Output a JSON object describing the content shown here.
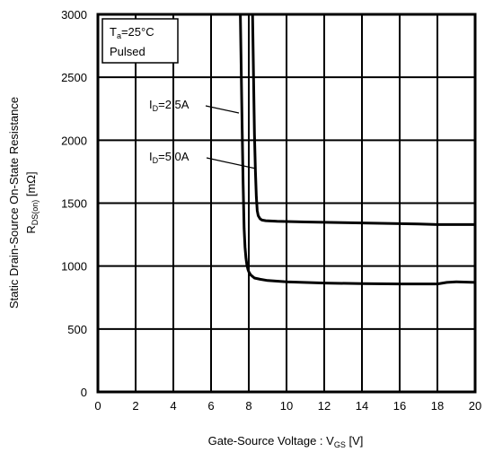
{
  "chart_data": {
    "type": "line",
    "title": "",
    "xlabel": {
      "main": "Gate-Source Voltage : V",
      "sub": "GS",
      "unit": " [V]"
    },
    "ylabel": {
      "line1": "Static Drain-Source On-State Resistance",
      "main": "R",
      "sub": "DS(on)",
      "unit": " [mΩ]"
    },
    "xlim": [
      0,
      20
    ],
    "ylim": [
      0,
      3000
    ],
    "xticks": [
      "0",
      "2",
      "4",
      "6",
      "8",
      "10",
      "12",
      "14",
      "16",
      "18",
      "20"
    ],
    "yticks": [
      "0",
      "500",
      "1000",
      "1500",
      "2000",
      "2500",
      "3000"
    ],
    "grid": true,
    "annotation": {
      "t_main": "T",
      "t_sub": "a",
      "t_rest": "=25°C",
      "line2": "Pulsed"
    },
    "series": [
      {
        "name": {
          "main": "I",
          "sub": "D",
          "rest": "=2.5A"
        },
        "x": [
          7.55,
          7.6,
          7.65,
          7.7,
          7.75,
          7.8,
          7.85,
          7.9,
          7.95,
          8.0,
          8.1,
          8.3,
          8.6,
          9,
          10,
          12,
          14,
          16,
          18,
          18.5,
          19,
          20
        ],
        "y": [
          3000,
          2550,
          2100,
          1650,
          1300,
          1150,
          1060,
          1010,
          975,
          955,
          930,
          905,
          895,
          885,
          875,
          865,
          860,
          858,
          858,
          870,
          875,
          870
        ]
      },
      {
        "name": {
          "main": "I",
          "sub": "D",
          "rest": "=5.0A"
        },
        "x": [
          8.2,
          8.25,
          8.3,
          8.35,
          8.4,
          8.45,
          8.5,
          8.6,
          8.7,
          8.9,
          9.5,
          11,
          13,
          15,
          17,
          18,
          19,
          20
        ],
        "y": [
          3000,
          2500,
          2050,
          1750,
          1550,
          1440,
          1400,
          1375,
          1365,
          1360,
          1355,
          1350,
          1345,
          1340,
          1335,
          1330,
          1330,
          1330
        ]
      }
    ]
  }
}
